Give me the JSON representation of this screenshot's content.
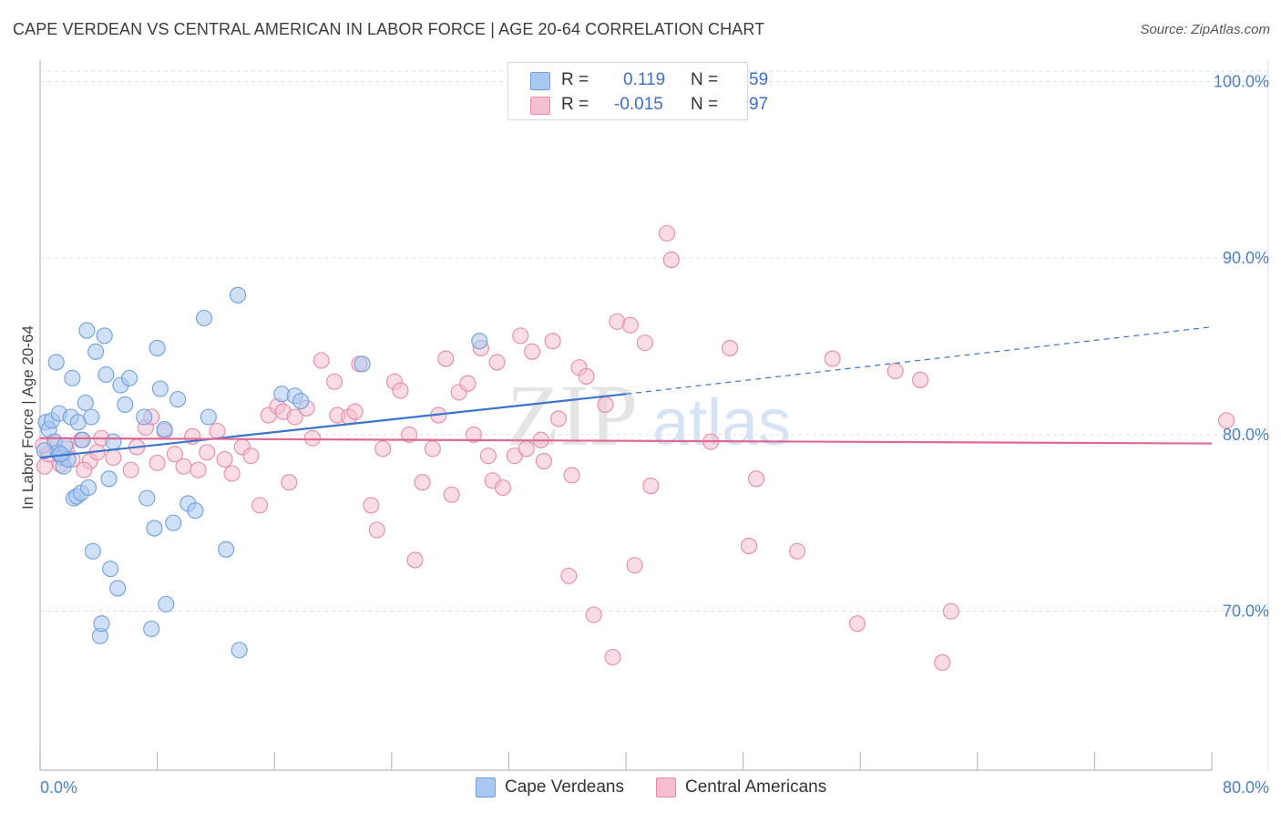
{
  "title": "CAPE VERDEAN VS CENTRAL AMERICAN IN LABOR FORCE | AGE 20-64 CORRELATION CHART",
  "source": "Source: ZipAtlas.com",
  "watermark": {
    "zip": "ZIP",
    "atlas": "atlas"
  },
  "legend": {
    "rows": [
      {
        "r_label": "R =",
        "r_value": "0.119",
        "n_label": "N =",
        "n_value": "59",
        "color": "#a9c8f0",
        "border": "#6f9fe0"
      },
      {
        "r_label": "R =",
        "r_value": "-0.015",
        "n_label": "N =",
        "n_value": "97",
        "color": "#f6bfd0",
        "border": "#e88aa8"
      }
    ]
  },
  "bottom_legend": [
    {
      "label": "Cape Verdeans",
      "color": "#a9c8f0",
      "border": "#6f9fe0"
    },
    {
      "label": "Central Americans",
      "color": "#f6bfd0",
      "border": "#e88aa8"
    }
  ],
  "chart_data": {
    "type": "scatter",
    "title": "CAPE VERDEAN VS CENTRAL AMERICAN IN LABOR FORCE | AGE 20-64 CORRELATION CHART",
    "xlabel": "",
    "ylabel": "In Labor Force | Age 20-64",
    "xlim": [
      0,
      80
    ],
    "ylim": [
      61,
      101
    ],
    "x_ticks": [
      0,
      80
    ],
    "x_tick_labels": [
      "0.0%",
      "80.0%"
    ],
    "y_ticks": [
      70,
      80,
      90,
      100
    ],
    "y_tick_labels": [
      "70.0%",
      "80.0%",
      "90.0%",
      "100.0%"
    ],
    "grid": true,
    "legend_position": "top-center",
    "series": [
      {
        "name": "Cape Verdeans",
        "color": "#6f9fe0",
        "fill": "#a9c8f0",
        "line_color": "#3a74cc",
        "trend": {
          "x": [
            0,
            40
          ],
          "y": [
            78.7,
            82.3
          ],
          "dashed_extension": {
            "x": [
              40,
              80
            ],
            "y": [
              82.3,
              86.1
            ]
          }
        },
        "points": [
          [
            0.4,
            80.7
          ],
          [
            0.6,
            80.3
          ],
          [
            0.8,
            80.8
          ],
          [
            1.0,
            79.6
          ],
          [
            1.1,
            84.1
          ],
          [
            1.2,
            79.0
          ],
          [
            1.3,
            81.2
          ],
          [
            1.5,
            78.7
          ],
          [
            1.6,
            78.2
          ],
          [
            1.7,
            79.4
          ],
          [
            1.9,
            78.6
          ],
          [
            2.1,
            81.0
          ],
          [
            2.2,
            83.2
          ],
          [
            2.3,
            76.4
          ],
          [
            2.5,
            76.5
          ],
          [
            2.6,
            80.7
          ],
          [
            2.8,
            76.7
          ],
          [
            2.9,
            79.7
          ],
          [
            3.1,
            81.8
          ],
          [
            3.2,
            85.9
          ],
          [
            3.3,
            77.0
          ],
          [
            3.5,
            81.0
          ],
          [
            3.6,
            73.4
          ],
          [
            3.8,
            84.7
          ],
          [
            4.1,
            68.6
          ],
          [
            4.2,
            69.3
          ],
          [
            4.4,
            85.6
          ],
          [
            4.5,
            83.4
          ],
          [
            4.7,
            77.5
          ],
          [
            4.8,
            72.4
          ],
          [
            5.0,
            79.6
          ],
          [
            5.3,
            71.3
          ],
          [
            5.5,
            82.8
          ],
          [
            5.8,
            81.7
          ],
          [
            6.1,
            83.2
          ],
          [
            7.1,
            81.0
          ],
          [
            7.3,
            76.4
          ],
          [
            7.6,
            69.0
          ],
          [
            7.8,
            74.7
          ],
          [
            8.0,
            84.9
          ],
          [
            8.2,
            82.6
          ],
          [
            8.6,
            70.4
          ],
          [
            8.5,
            80.3
          ],
          [
            9.1,
            75.0
          ],
          [
            9.4,
            82.0
          ],
          [
            10.1,
            76.1
          ],
          [
            11.2,
            86.6
          ],
          [
            10.6,
            75.7
          ],
          [
            11.5,
            81.0
          ],
          [
            12.7,
            73.5
          ],
          [
            13.6,
            67.8
          ],
          [
            13.5,
            87.9
          ],
          [
            16.5,
            82.3
          ],
          [
            17.4,
            82.2
          ],
          [
            17.8,
            81.9
          ],
          [
            22.0,
            84.0
          ],
          [
            30.0,
            85.3
          ],
          [
            0.3,
            79.1
          ],
          [
            1.4,
            78.9
          ]
        ]
      },
      {
        "name": "Central Americans",
        "color": "#e88aa8",
        "fill": "#f6bfd0",
        "line_color": "#e06894",
        "trend": {
          "x": [
            0,
            80
          ],
          "y": [
            79.8,
            79.5
          ]
        },
        "points": [
          [
            0.3,
            78.2
          ],
          [
            0.6,
            78.9
          ],
          [
            1.0,
            79.6
          ],
          [
            1.4,
            78.3
          ],
          [
            1.8,
            79.2
          ],
          [
            2.2,
            78.6
          ],
          [
            2.8,
            79.7
          ],
          [
            3.4,
            78.5
          ],
          [
            3.9,
            79.0
          ],
          [
            4.2,
            79.8
          ],
          [
            5.0,
            78.7
          ],
          [
            6.2,
            78.0
          ],
          [
            6.6,
            79.3
          ],
          [
            7.2,
            80.4
          ],
          [
            7.6,
            81.0
          ],
          [
            8.0,
            78.4
          ],
          [
            8.5,
            80.2
          ],
          [
            9.2,
            78.9
          ],
          [
            9.8,
            78.2
          ],
          [
            10.4,
            79.9
          ],
          [
            10.8,
            78.0
          ],
          [
            11.4,
            79.0
          ],
          [
            12.1,
            80.2
          ],
          [
            12.6,
            78.6
          ],
          [
            13.1,
            77.8
          ],
          [
            13.8,
            79.3
          ],
          [
            14.4,
            78.8
          ],
          [
            15.0,
            76.0
          ],
          [
            15.6,
            81.1
          ],
          [
            16.2,
            81.6
          ],
          [
            16.6,
            81.3
          ],
          [
            17.0,
            77.3
          ],
          [
            17.4,
            81.0
          ],
          [
            18.2,
            81.5
          ],
          [
            18.6,
            79.8
          ],
          [
            19.2,
            84.2
          ],
          [
            20.1,
            83.0
          ],
          [
            20.3,
            81.1
          ],
          [
            21.1,
            81.0
          ],
          [
            21.5,
            81.3
          ],
          [
            21.8,
            84.0
          ],
          [
            22.6,
            76.0
          ],
          [
            23.0,
            74.6
          ],
          [
            23.4,
            79.2
          ],
          [
            24.2,
            83.0
          ],
          [
            24.6,
            82.5
          ],
          [
            25.2,
            80.0
          ],
          [
            25.6,
            72.9
          ],
          [
            26.1,
            77.3
          ],
          [
            26.8,
            79.2
          ],
          [
            27.2,
            81.1
          ],
          [
            27.7,
            84.3
          ],
          [
            28.1,
            76.6
          ],
          [
            28.6,
            82.4
          ],
          [
            29.2,
            82.9
          ],
          [
            29.6,
            80.0
          ],
          [
            30.1,
            84.9
          ],
          [
            30.6,
            78.8
          ],
          [
            30.9,
            77.4
          ],
          [
            31.2,
            84.1
          ],
          [
            31.6,
            77.0
          ],
          [
            32.4,
            78.8
          ],
          [
            32.8,
            85.6
          ],
          [
            33.2,
            79.2
          ],
          [
            33.6,
            84.7
          ],
          [
            34.2,
            79.7
          ],
          [
            34.4,
            78.5
          ],
          [
            35.0,
            85.3
          ],
          [
            35.4,
            80.9
          ],
          [
            36.1,
            72.0
          ],
          [
            36.3,
            77.7
          ],
          [
            36.8,
            83.8
          ],
          [
            37.3,
            83.3
          ],
          [
            37.8,
            69.8
          ],
          [
            38.6,
            81.7
          ],
          [
            39.4,
            86.4
          ],
          [
            39.1,
            67.4
          ],
          [
            40.3,
            86.2
          ],
          [
            40.6,
            72.6
          ],
          [
            41.3,
            85.2
          ],
          [
            41.7,
            77.1
          ],
          [
            42.8,
            91.4
          ],
          [
            43.1,
            89.9
          ],
          [
            45.8,
            79.6
          ],
          [
            47.1,
            84.9
          ],
          [
            48.4,
            73.7
          ],
          [
            48.9,
            77.5
          ],
          [
            51.7,
            73.4
          ],
          [
            54.1,
            84.3
          ],
          [
            55.8,
            69.3
          ],
          [
            58.4,
            83.6
          ],
          [
            60.1,
            83.1
          ],
          [
            62.2,
            70.0
          ],
          [
            61.6,
            67.1
          ],
          [
            81.0,
            80.8
          ],
          [
            0.2,
            79.4
          ],
          [
            3.0,
            78.0
          ]
        ]
      }
    ]
  }
}
